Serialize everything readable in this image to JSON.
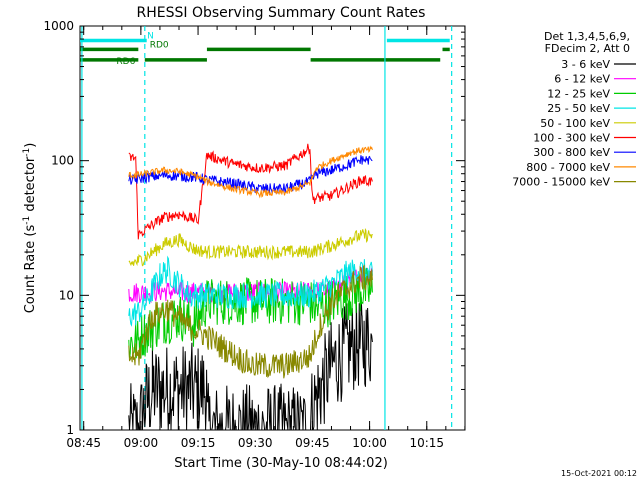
{
  "chart_data": {
    "type": "line",
    "title": "RHESSI Observing Summary Count Rates",
    "xlabel": "Start Time (30-May-10 08:44:02)",
    "ylabel": "Count Rate (s⁻¹ detector⁻¹)",
    "ylabel_parts": {
      "a": "Count Rate (s",
      "sup1": "-1",
      "b": " detector",
      "sup2": "-1",
      "c": ")"
    },
    "yscale": "log",
    "xunit": "minutes since 08:44:02",
    "xlim": [
      0,
      101
    ],
    "ylim": [
      1,
      1000
    ],
    "yticks": [
      {
        "label": "1",
        "value": 1
      },
      {
        "label": "10",
        "value": 10
      },
      {
        "label": "100",
        "value": 100
      },
      {
        "label": "1000",
        "value": 1000
      }
    ],
    "xticks": [
      {
        "label": "08:45",
        "value": 0.97
      },
      {
        "label": "09:00",
        "value": 15.97
      },
      {
        "label": "09:15",
        "value": 30.97
      },
      {
        "label": "09:30",
        "value": 45.97
      },
      {
        "label": "09:45",
        "value": 60.97
      },
      {
        "label": "10:00",
        "value": 75.97
      },
      {
        "label": "10:15",
        "value": 90.97
      }
    ],
    "legend_header": [
      "Det 1,3,4,5,6,9,",
      "FDecim 2, Att 0"
    ],
    "legend_position": "right",
    "timestamp": "15-Oct-2021 00:12",
    "flags": [
      {
        "label": "N",
        "color": "#00e5e5",
        "level": 780,
        "segments": [
          [
            0,
            17.5
          ],
          [
            80.5,
            97.0
          ]
        ]
      },
      {
        "label": "RD0",
        "color": "#007700",
        "level": 670,
        "segments": [
          [
            0,
            15.3
          ],
          [
            33.3,
            60.5
          ],
          [
            95.1,
            97.0
          ]
        ]
      },
      {
        "label": "RD6",
        "color": "#007700",
        "level": 560,
        "segments": [
          [
            0,
            15.3
          ],
          [
            17.0,
            33.3
          ],
          [
            60.5,
            94.5
          ]
        ]
      }
    ],
    "vlines": [
      {
        "x": 17.0,
        "style": "dashed",
        "color": "#00e5e5"
      },
      {
        "x": 80.0,
        "style": "solid",
        "color": "#00e5e5"
      },
      {
        "x": 97.5,
        "style": "dashed",
        "color": "#00e5e5"
      },
      {
        "x": 0.5,
        "style": "solid",
        "color": "#00e5e5"
      }
    ],
    "series": [
      {
        "name": "3 - 6 keV",
        "color": "#000000",
        "noise": 0.35,
        "points": [
          [
            12.8,
            1
          ],
          [
            15.3,
            1
          ],
          [
            17.0,
            1.5
          ],
          [
            19,
            2
          ],
          [
            24,
            2
          ],
          [
            29,
            2
          ],
          [
            33.2,
            2
          ],
          [
            33.3,
            1
          ],
          [
            60.3,
            1
          ],
          [
            61.0,
            1.5
          ],
          [
            63,
            2
          ],
          [
            66,
            3
          ],
          [
            70,
            4
          ],
          [
            74,
            4.5
          ],
          [
            76.7,
            4.5
          ]
        ]
      },
      {
        "name": "6 - 12 keV",
        "color": "#ff00ff",
        "noise": 0.08,
        "points": [
          [
            12.8,
            10.5
          ],
          [
            15.3,
            10.5
          ],
          [
            17.0,
            10.5
          ],
          [
            22,
            10.8
          ],
          [
            28,
            10.5
          ],
          [
            33.3,
            10.5
          ],
          [
            45,
            10.5
          ],
          [
            60.3,
            10.5
          ],
          [
            61,
            10.5
          ],
          [
            66,
            11
          ],
          [
            71,
            12.5
          ],
          [
            74,
            14.5
          ],
          [
            76.7,
            15
          ]
        ]
      },
      {
        "name": "12 - 25 keV",
        "color": "#00cc00",
        "noise": 0.18,
        "points": [
          [
            12.8,
            4.5
          ],
          [
            15.3,
            4.5
          ],
          [
            16.0,
            5
          ],
          [
            18,
            5.5
          ],
          [
            22,
            6.5
          ],
          [
            26,
            7
          ],
          [
            30,
            6
          ],
          [
            33.3,
            9
          ],
          [
            45,
            9
          ],
          [
            60.3,
            9
          ],
          [
            62,
            8
          ],
          [
            66,
            9
          ],
          [
            71,
            10
          ],
          [
            74,
            11
          ],
          [
            76.7,
            10.5
          ]
        ]
      },
      {
        "name": "25 - 50 keV",
        "color": "#00e5e5",
        "noise": 0.1,
        "points": [
          [
            12.8,
            7
          ],
          [
            15.3,
            7.5
          ],
          [
            17.0,
            8.5
          ],
          [
            19,
            11
          ],
          [
            21,
            14
          ],
          [
            23,
            15.5
          ],
          [
            25,
            13
          ],
          [
            29,
            10
          ],
          [
            33.3,
            10
          ],
          [
            45,
            10
          ],
          [
            60.3,
            10
          ],
          [
            63,
            11
          ],
          [
            66,
            12
          ],
          [
            70,
            14.5
          ],
          [
            73,
            15.5
          ],
          [
            76.7,
            14
          ]
        ]
      },
      {
        "name": "50 - 100 keV",
        "color": "#cccc00",
        "noise": 0.05,
        "points": [
          [
            12.8,
            17
          ],
          [
            15.3,
            18
          ],
          [
            17.0,
            19
          ],
          [
            22,
            24
          ],
          [
            26,
            26
          ],
          [
            30,
            22
          ],
          [
            33.3,
            21
          ],
          [
            45,
            21
          ],
          [
            60.3,
            21
          ],
          [
            63,
            22
          ],
          [
            67,
            24
          ],
          [
            72,
            27
          ],
          [
            75,
            28
          ],
          [
            76.7,
            28
          ]
        ]
      },
      {
        "name": "100 - 300 keV",
        "color": "#ff0000",
        "noise": 0.04,
        "points": [
          [
            12.8,
            105
          ],
          [
            14.6,
            105
          ],
          [
            15.3,
            28
          ],
          [
            18,
            32
          ],
          [
            22,
            38
          ],
          [
            26,
            40
          ],
          [
            31,
            36
          ],
          [
            33.3,
            110
          ],
          [
            40,
            95
          ],
          [
            47,
            88
          ],
          [
            54,
            92
          ],
          [
            60.3,
            125
          ],
          [
            61,
            52
          ],
          [
            66,
            55
          ],
          [
            71,
            65
          ],
          [
            74,
            72
          ],
          [
            76.7,
            70
          ]
        ]
      },
      {
        "name": "300 - 800 keV",
        "color": "#0000ff",
        "noise": 0.04,
        "points": [
          [
            12.8,
            72
          ],
          [
            14.6,
            72
          ],
          [
            17.0,
            75
          ],
          [
            22,
            78
          ],
          [
            26,
            77
          ],
          [
            31,
            75
          ],
          [
            33.3,
            72
          ],
          [
            40,
            68
          ],
          [
            47,
            62
          ],
          [
            54,
            62
          ],
          [
            60.3,
            70
          ],
          [
            62,
            80
          ],
          [
            66,
            85
          ],
          [
            71,
            95
          ],
          [
            74,
            102
          ],
          [
            76.7,
            100
          ]
        ]
      },
      {
        "name": "800 - 7000 keV",
        "color": "#ff8800",
        "noise": 0.025,
        "points": [
          [
            12.8,
            78
          ],
          [
            14.6,
            78
          ],
          [
            17.0,
            80
          ],
          [
            22,
            85
          ],
          [
            26,
            83
          ],
          [
            31,
            76
          ],
          [
            33.3,
            70
          ],
          [
            40,
            62
          ],
          [
            47,
            57
          ],
          [
            54,
            58
          ],
          [
            60.3,
            68
          ],
          [
            62,
            88
          ],
          [
            66,
            100
          ],
          [
            71,
            115
          ],
          [
            74,
            120
          ],
          [
            76.7,
            120
          ]
        ]
      },
      {
        "name": "7000 - 15000 keV",
        "color": "#888800",
        "noise": 0.1,
        "points": [
          [
            12.8,
            3.5
          ],
          [
            15.3,
            3.5
          ],
          [
            17.0,
            5
          ],
          [
            19,
            7
          ],
          [
            23,
            8
          ],
          [
            28,
            6
          ],
          [
            33.3,
            5
          ],
          [
            38,
            4
          ],
          [
            45,
            3
          ],
          [
            54,
            3
          ],
          [
            60.3,
            3.5
          ],
          [
            63,
            6
          ],
          [
            66,
            9
          ],
          [
            71,
            12
          ],
          [
            74,
            13.5
          ],
          [
            76.7,
            13
          ]
        ]
      }
    ]
  }
}
